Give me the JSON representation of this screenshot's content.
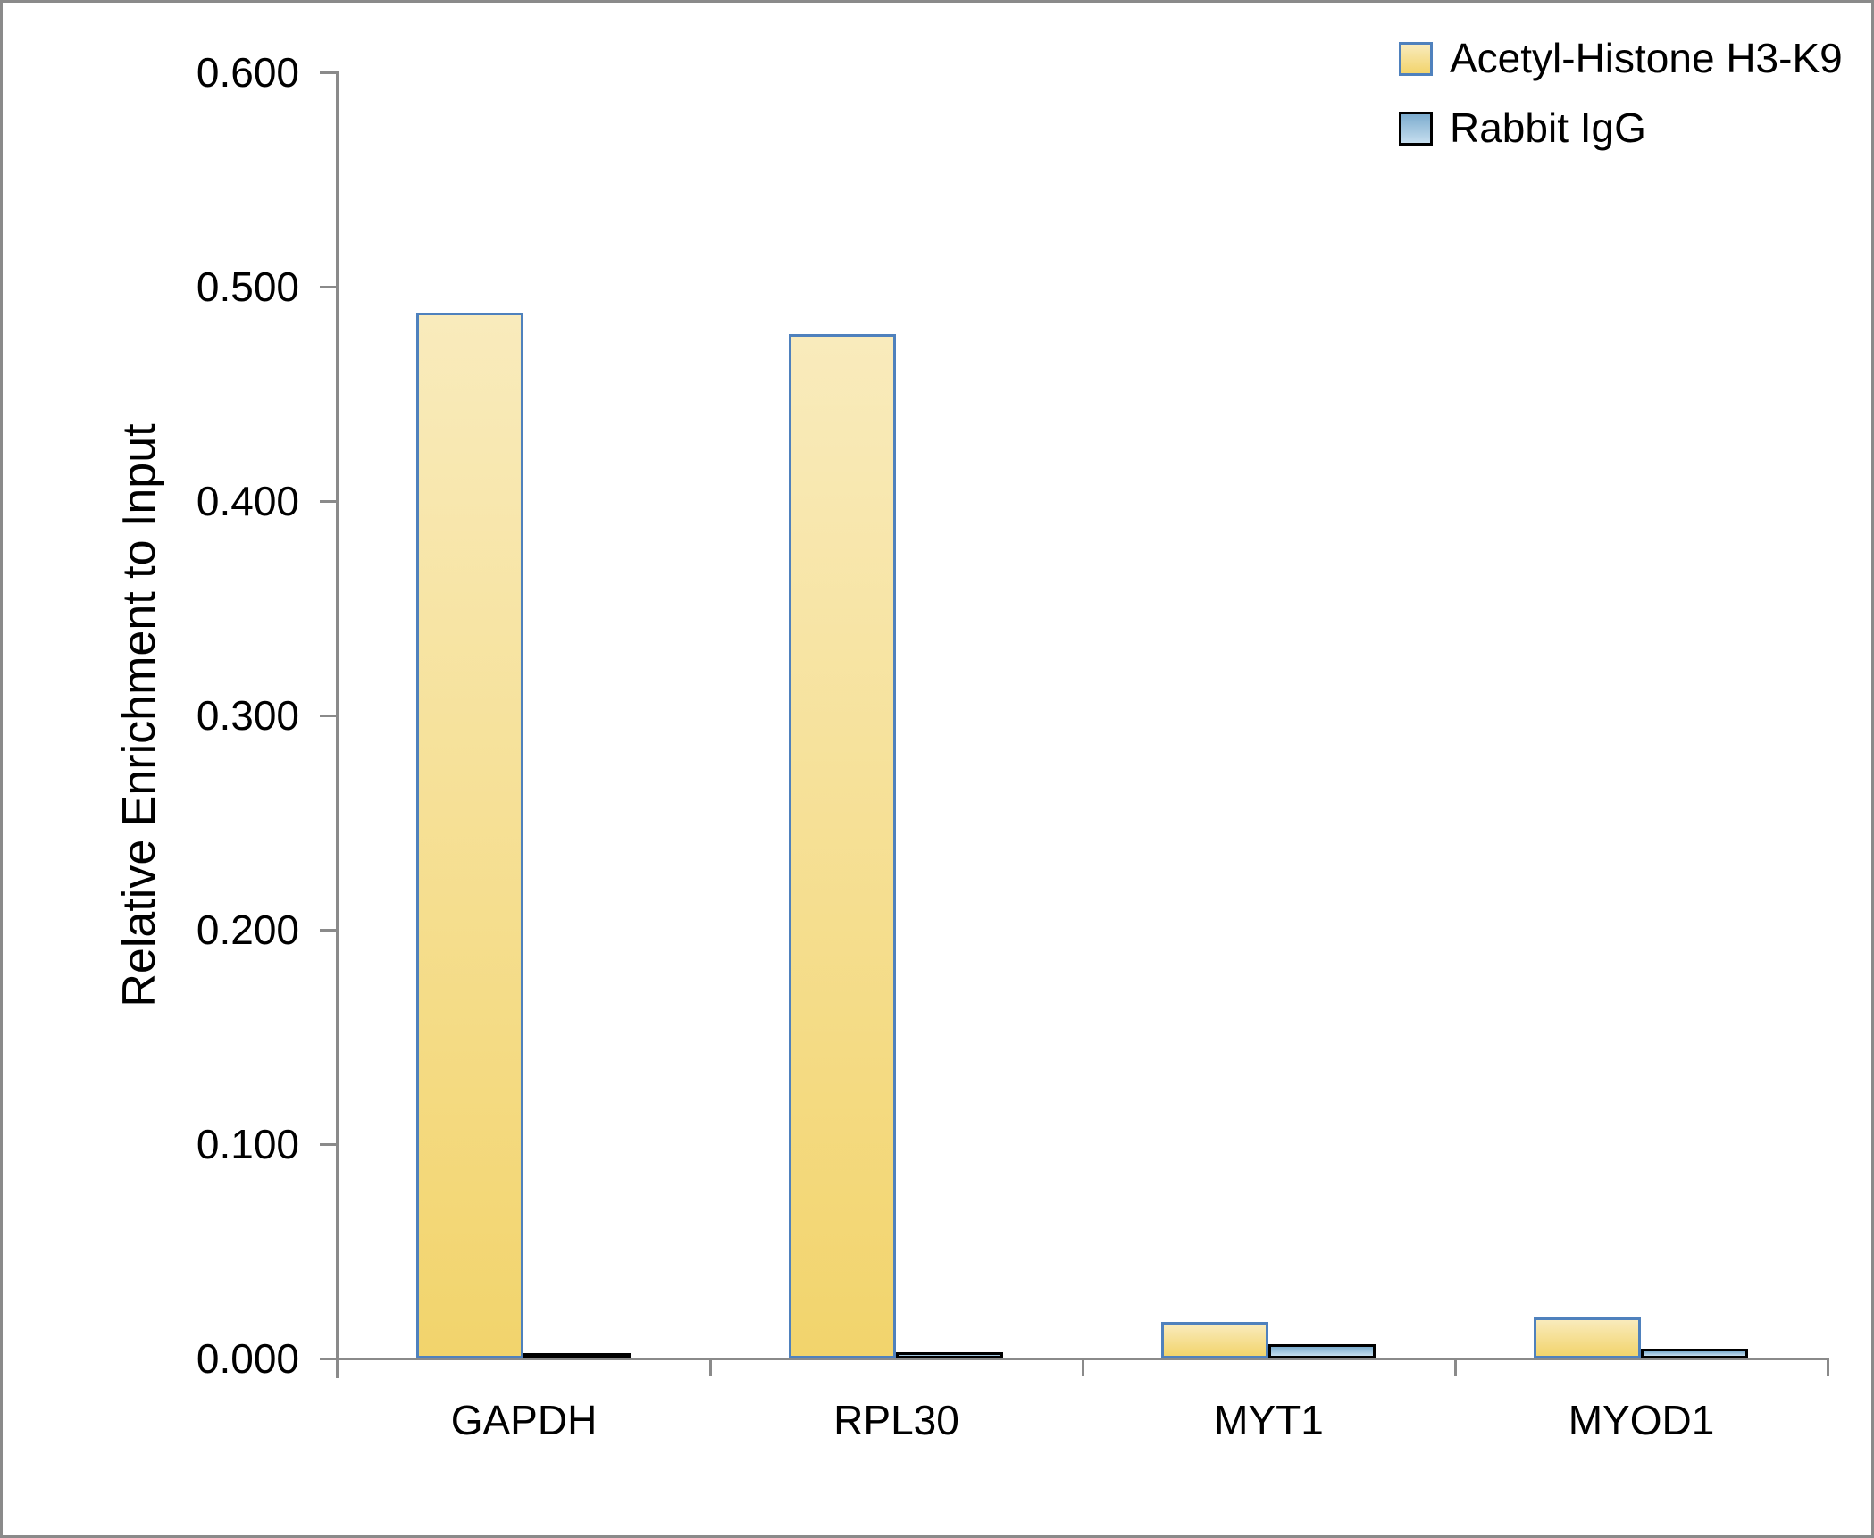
{
  "chart_data": {
    "type": "bar",
    "title": "",
    "ylabel": "Relative Enrichment to Input",
    "xlabel": "",
    "categories": [
      "GAPDH",
      "RPL30",
      "MYT1",
      "MYOD1"
    ],
    "series": [
      {
        "name": "Acetyl-Histone H3-K9",
        "values": [
          0.488,
          0.478,
          0.017,
          0.019
        ],
        "fill_top": "#F9EBBC",
        "fill_bottom": "#F2D46C",
        "border": "#4F81BD"
      },
      {
        "name": "Rabbit IgG",
        "values": [
          0.0025,
          0.003,
          0.0067,
          0.0046
        ],
        "fill_top": "#7CACCE",
        "fill_bottom": "#C6DEEF",
        "border": "#000000"
      }
    ],
    "ylim": [
      0,
      0.6
    ],
    "ytick_step": 0.1,
    "ytick_labels": [
      "0.000",
      "0.100",
      "0.200",
      "0.300",
      "0.400",
      "0.500",
      "0.600"
    ],
    "grid": false,
    "legend_position": "top-right",
    "axis_color": "#8A8A8A",
    "text_color": "#000000"
  }
}
